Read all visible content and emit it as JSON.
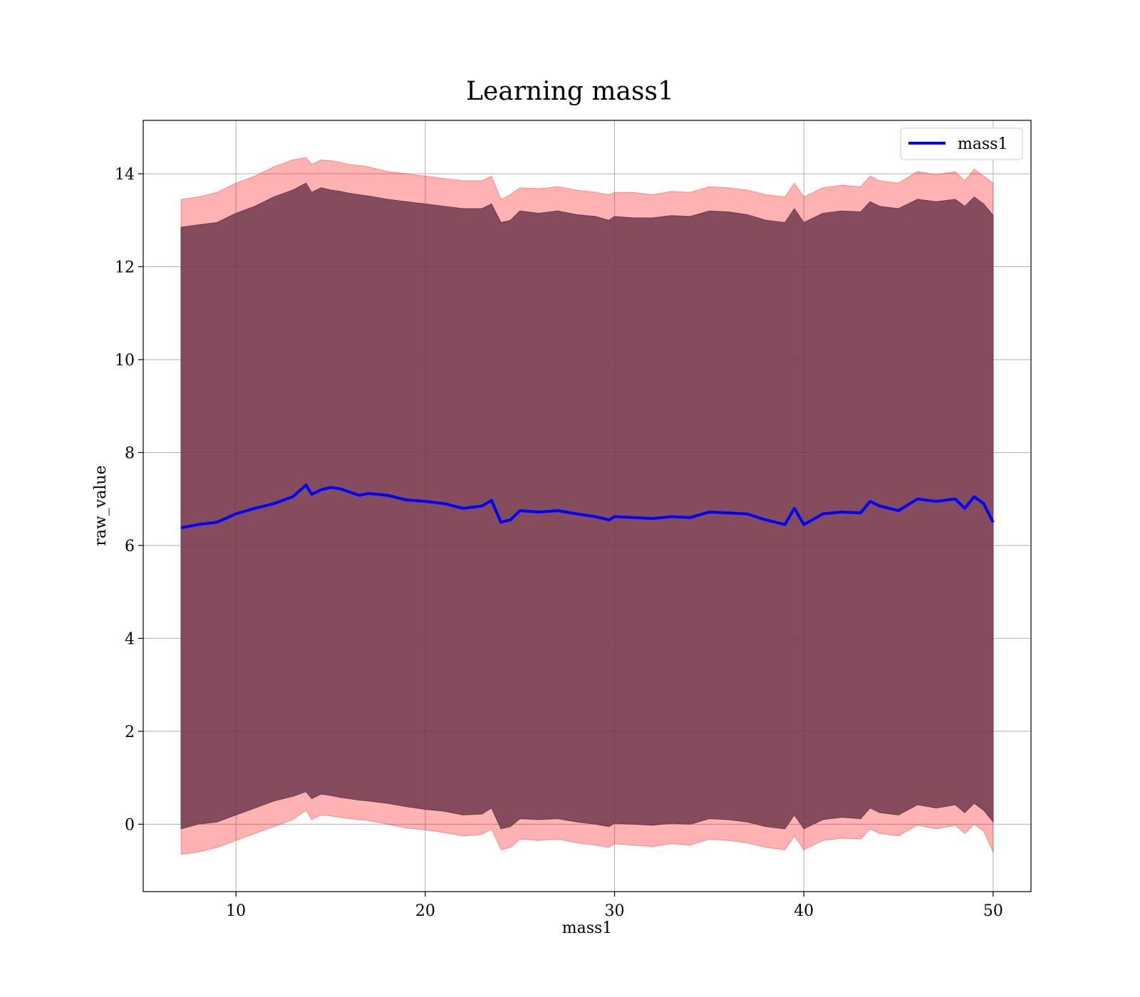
{
  "chart_data": {
    "type": "line",
    "title": "Learning mass1",
    "xlabel": "mass1",
    "ylabel": "raw_value",
    "xlim": [
      5.1,
      52.0
    ],
    "ylim": [
      -1.45,
      15.15
    ],
    "x_ticks": [
      10,
      20,
      30,
      40,
      50
    ],
    "y_ticks": [
      0,
      2,
      4,
      6,
      8,
      10,
      12,
      14
    ],
    "x_tick_labels": [
      "10",
      "20",
      "30",
      "40",
      "50"
    ],
    "y_tick_labels": [
      "0",
      "2",
      "4",
      "6",
      "8",
      "10",
      "12",
      "14"
    ],
    "grid": true,
    "legend": {
      "position": "top-right",
      "entries": [
        "mass1"
      ]
    },
    "colors": {
      "line": "#0000ff",
      "band": "#ff0000",
      "inner_band": "#6e3a4e",
      "grid": "#b0b0b0"
    },
    "series": [
      {
        "name": "mass1",
        "x": [
          7.1,
          8,
          9,
          10,
          11,
          12,
          13,
          13.7,
          14,
          14.5,
          15,
          15.5,
          16,
          16.5,
          17,
          18,
          19,
          20,
          21,
          22,
          23,
          23.5,
          24,
          24.5,
          25,
          26,
          27,
          28,
          29,
          29.7,
          30,
          31,
          32,
          33,
          34,
          35,
          36,
          37,
          38,
          39,
          39.5,
          40,
          41,
          42,
          43,
          43.5,
          44,
          45,
          46,
          47,
          48,
          48.5,
          49,
          49.5,
          50
        ],
        "y": [
          6.38,
          6.45,
          6.5,
          6.68,
          6.8,
          6.9,
          7.05,
          7.3,
          7.1,
          7.2,
          7.25,
          7.22,
          7.15,
          7.08,
          7.12,
          7.08,
          6.98,
          6.95,
          6.9,
          6.8,
          6.85,
          6.97,
          6.5,
          6.55,
          6.75,
          6.72,
          6.75,
          6.68,
          6.62,
          6.55,
          6.62,
          6.6,
          6.58,
          6.62,
          6.6,
          6.72,
          6.7,
          6.68,
          6.55,
          6.45,
          6.8,
          6.45,
          6.68,
          6.72,
          6.7,
          6.95,
          6.85,
          6.75,
          7.0,
          6.95,
          7.0,
          6.8,
          7.05,
          6.9,
          6.5
        ],
        "outer_upper": [
          13.45,
          13.5,
          13.6,
          13.8,
          13.95,
          14.15,
          14.3,
          14.35,
          14.2,
          14.3,
          14.28,
          14.25,
          14.2,
          14.18,
          14.15,
          14.05,
          14.0,
          13.95,
          13.9,
          13.85,
          13.85,
          13.95,
          13.45,
          13.55,
          13.7,
          13.68,
          13.72,
          13.65,
          13.6,
          13.55,
          13.6,
          13.6,
          13.55,
          13.62,
          13.6,
          13.72,
          13.7,
          13.65,
          13.55,
          13.5,
          13.8,
          13.5,
          13.7,
          13.75,
          13.72,
          13.95,
          13.85,
          13.8,
          14.05,
          13.98,
          14.05,
          13.85,
          14.1,
          13.95,
          13.8
        ],
        "inner_upper": [
          12.85,
          12.9,
          12.95,
          13.15,
          13.3,
          13.5,
          13.65,
          13.8,
          13.6,
          13.7,
          13.65,
          13.62,
          13.58,
          13.55,
          13.52,
          13.45,
          13.4,
          13.35,
          13.3,
          13.25,
          13.25,
          13.35,
          12.95,
          13.0,
          13.2,
          13.15,
          13.2,
          13.12,
          13.08,
          13.0,
          13.08,
          13.05,
          13.05,
          13.1,
          13.08,
          13.2,
          13.18,
          13.12,
          13.0,
          12.95,
          13.25,
          12.95,
          13.15,
          13.2,
          13.18,
          13.4,
          13.3,
          13.25,
          13.45,
          13.4,
          13.45,
          13.3,
          13.5,
          13.35,
          13.1
        ],
        "inner_lower": [
          -0.1,
          0.0,
          0.05,
          0.2,
          0.35,
          0.5,
          0.6,
          0.7,
          0.55,
          0.65,
          0.62,
          0.58,
          0.55,
          0.52,
          0.5,
          0.45,
          0.38,
          0.32,
          0.28,
          0.2,
          0.22,
          0.35,
          -0.1,
          -0.05,
          0.12,
          0.1,
          0.12,
          0.05,
          0.0,
          -0.05,
          0.02,
          0.0,
          -0.02,
          0.02,
          0.0,
          0.12,
          0.1,
          0.05,
          -0.05,
          -0.1,
          0.2,
          -0.1,
          0.1,
          0.15,
          0.12,
          0.35,
          0.25,
          0.2,
          0.42,
          0.35,
          0.42,
          0.25,
          0.45,
          0.3,
          0.05
        ],
        "outer_lower": [
          -0.65,
          -0.6,
          -0.5,
          -0.35,
          -0.2,
          -0.05,
          0.1,
          0.3,
          0.1,
          0.2,
          0.18,
          0.15,
          0.12,
          0.1,
          0.08,
          0.0,
          -0.08,
          -0.12,
          -0.18,
          -0.25,
          -0.22,
          -0.1,
          -0.55,
          -0.5,
          -0.32,
          -0.35,
          -0.32,
          -0.4,
          -0.45,
          -0.5,
          -0.42,
          -0.45,
          -0.48,
          -0.42,
          -0.45,
          -0.32,
          -0.35,
          -0.4,
          -0.5,
          -0.55,
          -0.25,
          -0.55,
          -0.35,
          -0.3,
          -0.32,
          -0.1,
          -0.2,
          -0.25,
          -0.02,
          -0.1,
          -0.02,
          -0.2,
          0.0,
          -0.15,
          -0.6
        ]
      }
    ]
  }
}
